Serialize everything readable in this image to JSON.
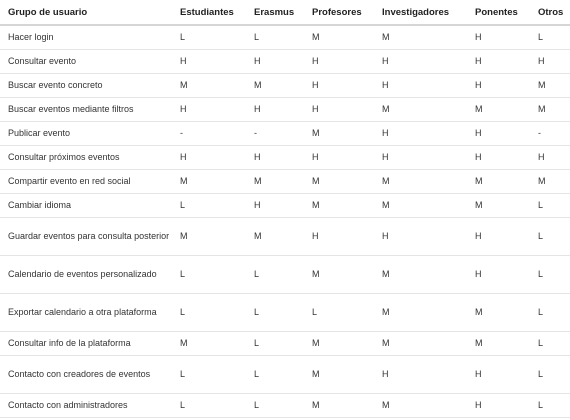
{
  "table": {
    "headers": [
      "Grupo de usuario",
      "Estudiantes",
      "Erasmus",
      "Profesores",
      "Investigadores",
      "Ponentes",
      "Otros"
    ],
    "rows": [
      {
        "label": "Hacer login",
        "values": [
          "L",
          "L",
          "M",
          "M",
          "H",
          "L"
        ]
      },
      {
        "label": "Consultar evento",
        "values": [
          "H",
          "H",
          "H",
          "H",
          "H",
          "H"
        ]
      },
      {
        "label": "Buscar evento concreto",
        "values": [
          "M",
          "M",
          "H",
          "H",
          "H",
          "M"
        ]
      },
      {
        "label": "Buscar eventos mediante filtros",
        "values": [
          "H",
          "H",
          "H",
          "M",
          "M",
          "M"
        ]
      },
      {
        "label": "Publicar evento",
        "values": [
          "-",
          "-",
          "M",
          "H",
          "H",
          "-"
        ]
      },
      {
        "label": "Consultar próximos eventos",
        "values": [
          "H",
          "H",
          "H",
          "H",
          "H",
          "H"
        ]
      },
      {
        "label": "Compartir evento en red social",
        "values": [
          "M",
          "M",
          "M",
          "M",
          "M",
          "M"
        ]
      },
      {
        "label": "Cambiar idioma",
        "values": [
          "L",
          "H",
          "M",
          "M",
          "M",
          "L"
        ]
      },
      {
        "label": "Guardar eventos para consulta posterior",
        "values": [
          "M",
          "M",
          "H",
          "H",
          "H",
          "L"
        ]
      },
      {
        "label": "Calendario de eventos personalizado",
        "values": [
          "L",
          "L",
          "M",
          "M",
          "H",
          "L"
        ]
      },
      {
        "label": "Exportar calendario a otra plataforma",
        "values": [
          "L",
          "L",
          "L",
          "M",
          "M",
          "L"
        ]
      },
      {
        "label": "Consultar info de la plataforma",
        "values": [
          "M",
          "L",
          "M",
          "M",
          "M",
          "L"
        ]
      },
      {
        "label": "Contacto con creadores de eventos",
        "values": [
          "L",
          "L",
          "M",
          "H",
          "H",
          "L"
        ]
      },
      {
        "label": "Contacto con administradores",
        "values": [
          "L",
          "L",
          "M",
          "M",
          "H",
          "L"
        ]
      }
    ]
  }
}
